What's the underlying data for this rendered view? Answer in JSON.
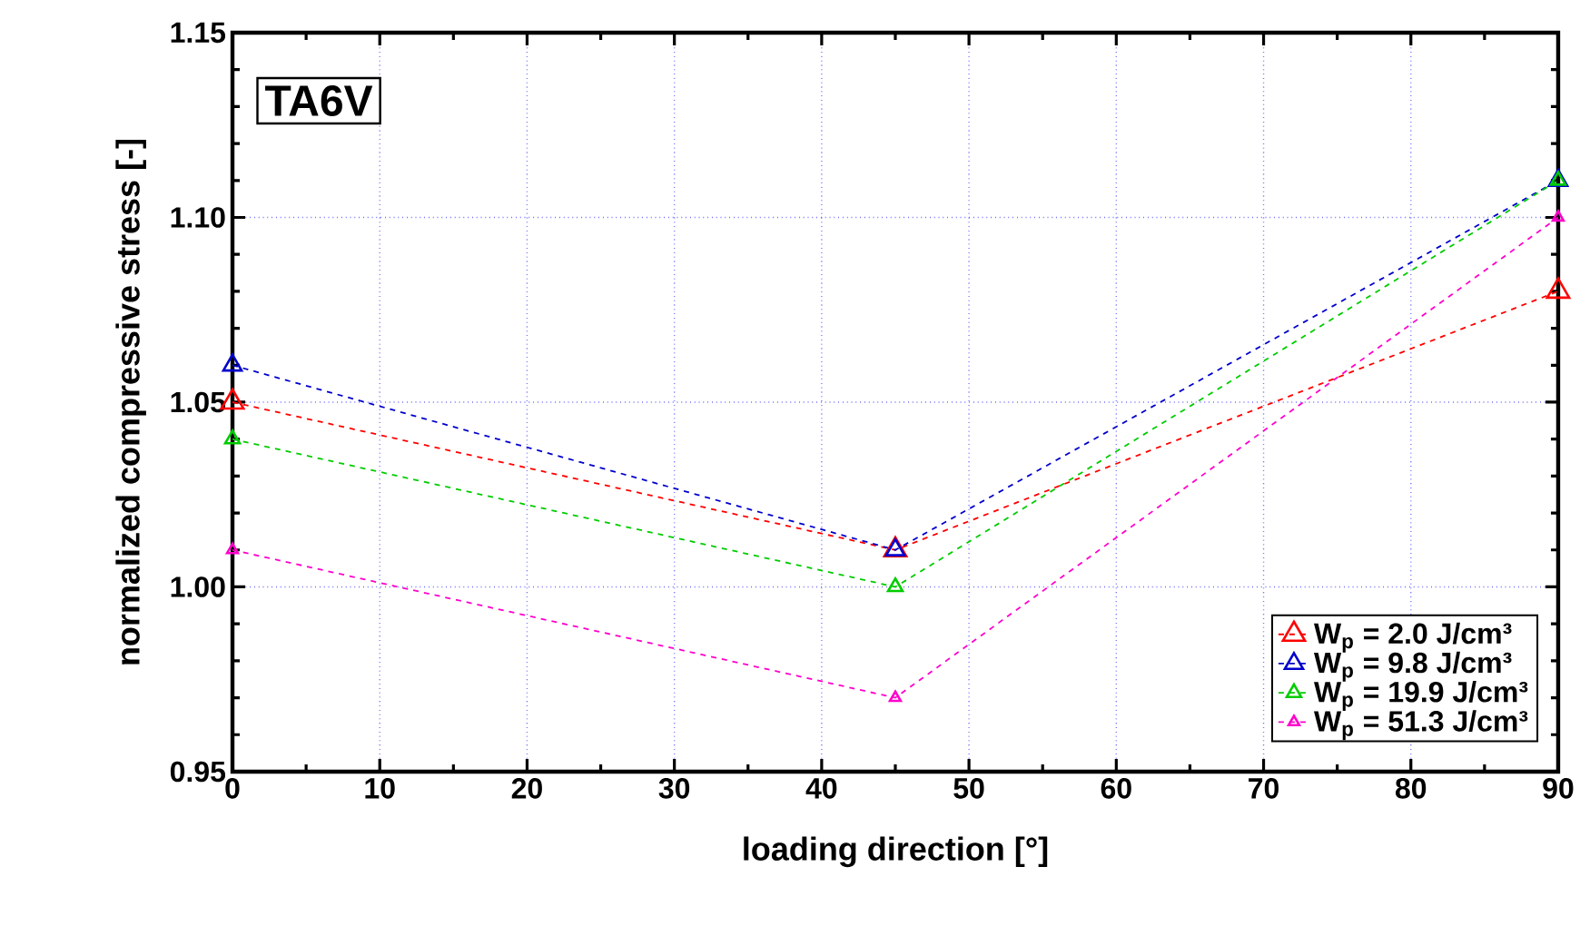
{
  "chart_data": {
    "type": "line",
    "xlabel": "loading direction [°]",
    "ylabel": "normalized compressive stress [-]",
    "annotations": [
      "TA6V"
    ],
    "x": [
      0,
      45,
      90
    ],
    "series": [
      {
        "name": "W$_{p}$ = 2.0 J/cm³",
        "color": "#ff0000",
        "values": [
          1.05,
          1.01,
          1.08
        ]
      },
      {
        "name": "W$_{p}$ = 9.8 J/cm³",
        "color": "#0000cc",
        "values": [
          1.06,
          1.01,
          1.11
        ]
      },
      {
        "name": "W$_{p}$ = 19.9 J/cm³",
        "color": "#00cc00",
        "values": [
          1.04,
          1.0,
          1.11
        ]
      },
      {
        "name": "W$_{p}$ = 51.3 J/cm³",
        "color": "#ff00cc",
        "values": [
          1.01,
          0.97,
          1.1
        ]
      }
    ],
    "xlim": [
      0,
      90
    ],
    "xticks": [
      0,
      10,
      20,
      30,
      40,
      50,
      60,
      70,
      80,
      90
    ],
    "ylim": [
      0.95,
      1.15
    ],
    "yticks": [
      {
        "value": 0.95,
        "label": "0.95"
      },
      {
        "value": 1.0,
        "label": "1.00"
      },
      {
        "value": 1.05,
        "label": "1.05"
      },
      {
        "value": 1.1,
        "label": "1.10"
      },
      {
        "value": 1.15,
        "label": "1.15"
      }
    ],
    "grid": true,
    "legend": "bottom right",
    "marker": "triangle",
    "line_style": "dashed"
  }
}
